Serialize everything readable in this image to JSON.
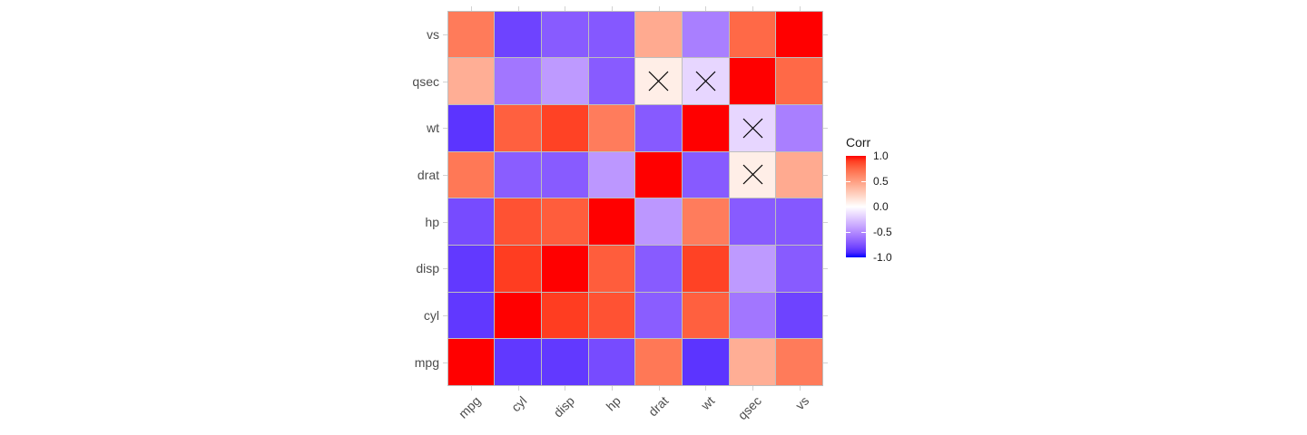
{
  "chart_data": {
    "type": "heatmap",
    "title": "",
    "xlabel": "",
    "ylabel": "",
    "x_categories": [
      "mpg",
      "cyl",
      "disp",
      "hp",
      "drat",
      "wt",
      "qsec",
      "vs"
    ],
    "y_categories_top_to_bottom": [
      "vs",
      "qsec",
      "wt",
      "drat",
      "hp",
      "disp",
      "cyl",
      "mpg"
    ],
    "matrix_rows_top_to_bottom": [
      [
        0.664,
        -0.811,
        -0.71,
        -0.723,
        0.44,
        -0.555,
        0.745,
        1.0
      ],
      [
        0.419,
        -0.591,
        -0.434,
        -0.708,
        0.091,
        -0.175,
        1.0,
        0.745
      ],
      [
        -0.868,
        0.782,
        0.888,
        0.659,
        -0.712,
        1.0,
        -0.175,
        -0.555
      ],
      [
        0.681,
        -0.7,
        -0.71,
        -0.449,
        1.0,
        -0.712,
        0.091,
        0.44
      ],
      [
        -0.776,
        0.832,
        0.791,
        1.0,
        -0.449,
        0.659,
        -0.708,
        -0.723
      ],
      [
        -0.848,
        0.902,
        1.0,
        0.791,
        -0.71,
        0.888,
        -0.434,
        -0.71
      ],
      [
        -0.852,
        1.0,
        0.902,
        0.832,
        -0.7,
        0.782,
        -0.591,
        -0.811
      ],
      [
        1.0,
        -0.852,
        -0.848,
        -0.776,
        0.681,
        -0.868,
        0.419,
        0.664
      ]
    ],
    "not_significant_marks": [
      {
        "row": "qsec",
        "col": "drat"
      },
      {
        "row": "qsec",
        "col": "wt"
      },
      {
        "row": "wt",
        "col": "qsec"
      },
      {
        "row": "drat",
        "col": "qsec"
      }
    ],
    "mark_shape": "x-cross",
    "legend": {
      "title": "Corr",
      "position": "right",
      "limits": [
        -1,
        1
      ],
      "tick_labels": [
        "1.0",
        "0.5",
        "0.0",
        "-0.5",
        "-1.0"
      ],
      "tick_values": [
        1.0,
        0.5,
        0.0,
        -0.5,
        -1.0
      ]
    },
    "grid": false,
    "palette": {
      "high": "#FF0000",
      "mid": "#FFFFFF",
      "low": "#0000FF",
      "interpolation": "lab",
      "cell_outline": "#BEBEBE",
      "axis_stub": "#D2D2D2",
      "axis_text": "#4D4D4D",
      "legend_text": "#1A1A1A",
      "mark_color": "#000000",
      "background": "#FFFFFF"
    }
  }
}
